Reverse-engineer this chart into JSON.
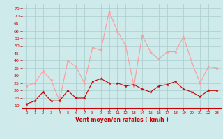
{
  "x": [
    0,
    1,
    2,
    3,
    4,
    5,
    6,
    7,
    8,
    9,
    10,
    11,
    12,
    13,
    14,
    15,
    16,
    17,
    18,
    19,
    20,
    21,
    22,
    23
  ],
  "wind_avg": [
    11,
    13,
    19,
    13,
    13,
    20,
    15,
    15,
    26,
    28,
    25,
    25,
    23,
    24,
    21,
    19,
    23,
    24,
    26,
    21,
    19,
    16,
    20,
    20
  ],
  "wind_gust": [
    23,
    25,
    33,
    27,
    13,
    40,
    36,
    25,
    49,
    47,
    73,
    60,
    50,
    23,
    57,
    46,
    41,
    46,
    46,
    56,
    39,
    25,
    36,
    35
  ],
  "bg_color": "#ceeaea",
  "grid_color": "#aacccc",
  "line_avg_color": "#cc0000",
  "line_gust_color": "#ff9999",
  "xlabel": "Vent moyen/en rafales ( km/h )",
  "xlabel_color": "#cc0000",
  "tick_color": "#cc0000",
  "axes_color": "#cc0000",
  "ylim": [
    8,
    78
  ],
  "yticks": [
    10,
    15,
    20,
    25,
    30,
    35,
    40,
    45,
    50,
    55,
    60,
    65,
    70,
    75
  ],
  "xticks": [
    0,
    1,
    2,
    3,
    4,
    5,
    6,
    7,
    8,
    9,
    10,
    11,
    12,
    13,
    14,
    15,
    16,
    17,
    18,
    19,
    20,
    21,
    22,
    23
  ],
  "xlim": [
    -0.5,
    23.5
  ]
}
